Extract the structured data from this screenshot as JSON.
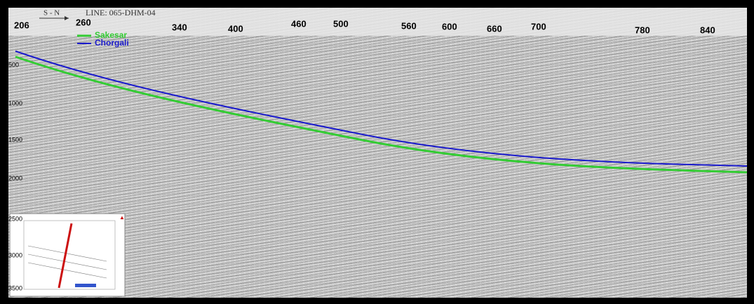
{
  "header": {
    "direction": "S - N",
    "line_name": "LINE: 065-DHM-04"
  },
  "shot_points": [
    "206",
    "260",
    "340",
    "400",
    "460",
    "500",
    "560",
    "600",
    "660",
    "700",
    "780",
    "840"
  ],
  "time_labels": [
    "500",
    "1000",
    "1500",
    "2000",
    "2500",
    "3000",
    "3500"
  ],
  "legend": [
    {
      "label": "Sakesar"
    },
    {
      "label": "Chorgali"
    }
  ]
}
